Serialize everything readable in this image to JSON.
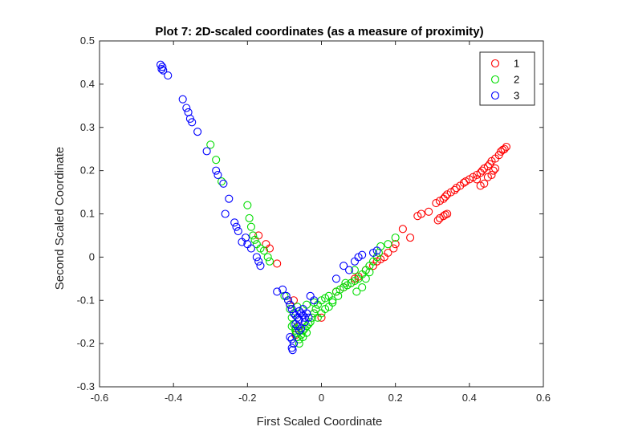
{
  "chart_data": {
    "type": "scatter",
    "title": "Plot 7: 2D-scaled coordinates (as a measure of proximity)",
    "xlabel": "First Scaled Coordinate",
    "ylabel": "Second Scaled Coordinate",
    "xlim": [
      -0.6,
      0.6
    ],
    "ylim": [
      -0.3,
      0.5
    ],
    "xticks": [
      "-0.6",
      "-0.4",
      "-0.2",
      "0",
      "0.2",
      "0.4",
      "0.6"
    ],
    "yticks": [
      "-0.3",
      "-0.2",
      "-0.1",
      "0",
      "0.1",
      "0.2",
      "0.3",
      "0.4",
      "0.5"
    ],
    "grid": false,
    "legend_position": "top-right",
    "marker": "open-circle",
    "series": [
      {
        "name": "1",
        "color": "#ff0000",
        "points": [
          [
            0.5,
            0.255
          ],
          [
            0.495,
            0.25
          ],
          [
            0.49,
            0.248
          ],
          [
            0.485,
            0.244
          ],
          [
            0.48,
            0.236
          ],
          [
            0.47,
            0.228
          ],
          [
            0.46,
            0.222
          ],
          [
            0.455,
            0.215
          ],
          [
            0.45,
            0.21
          ],
          [
            0.44,
            0.205
          ],
          [
            0.435,
            0.2
          ],
          [
            0.43,
            0.195
          ],
          [
            0.42,
            0.19
          ],
          [
            0.41,
            0.185
          ],
          [
            0.4,
            0.18
          ],
          [
            0.39,
            0.175
          ],
          [
            0.385,
            0.172
          ],
          [
            0.375,
            0.165
          ],
          [
            0.365,
            0.16
          ],
          [
            0.36,
            0.155
          ],
          [
            0.35,
            0.15
          ],
          [
            0.34,
            0.145
          ],
          [
            0.335,
            0.14
          ],
          [
            0.33,
            0.135
          ],
          [
            0.32,
            0.13
          ],
          [
            0.31,
            0.125
          ],
          [
            0.47,
            0.205
          ],
          [
            0.465,
            0.2
          ],
          [
            0.46,
            0.19
          ],
          [
            0.45,
            0.185
          ],
          [
            0.44,
            0.17
          ],
          [
            0.43,
            0.165
          ],
          [
            0.42,
            0.18
          ],
          [
            0.33,
            0.095
          ],
          [
            0.32,
            0.09
          ],
          [
            0.315,
            0.085
          ],
          [
            0.34,
            0.1
          ],
          [
            0.335,
            0.098
          ],
          [
            0.29,
            0.105
          ],
          [
            0.27,
            0.1
          ],
          [
            0.26,
            0.095
          ],
          [
            0.22,
            0.065
          ],
          [
            0.24,
            0.045
          ],
          [
            0.2,
            0.03
          ],
          [
            0.195,
            0.02
          ],
          [
            0.18,
            0.01
          ],
          [
            0.17,
            0.0
          ],
          [
            0.16,
            -0.005
          ],
          [
            0.15,
            -0.01
          ],
          [
            0.14,
            -0.02
          ],
          [
            0.12,
            -0.03
          ],
          [
            0.1,
            -0.045
          ],
          [
            0.09,
            -0.05
          ],
          [
            0.08,
            -0.06
          ],
          [
            0.06,
            -0.07
          ],
          [
            0.04,
            -0.08
          ],
          [
            0.0,
            -0.14
          ],
          [
            -0.02,
            -0.13
          ],
          [
            -0.06,
            -0.16
          ],
          [
            -0.07,
            -0.18
          ],
          [
            -0.075,
            -0.1
          ],
          [
            -0.085,
            -0.11
          ],
          [
            -0.12,
            -0.015
          ],
          [
            -0.14,
            0.02
          ],
          [
            -0.15,
            0.03
          ],
          [
            -0.17,
            0.05
          ]
        ]
      },
      {
        "name": "2",
        "color": "#00dd00",
        "points": [
          [
            -0.3,
            0.26
          ],
          [
            -0.285,
            0.225
          ],
          [
            -0.27,
            0.175
          ],
          [
            -0.2,
            0.12
          ],
          [
            -0.195,
            0.09
          ],
          [
            -0.19,
            0.07
          ],
          [
            -0.185,
            0.05
          ],
          [
            -0.18,
            0.04
          ],
          [
            -0.175,
            0.03
          ],
          [
            -0.165,
            0.02
          ],
          [
            -0.155,
            0.015
          ],
          [
            -0.145,
            0.0
          ],
          [
            -0.14,
            -0.01
          ],
          [
            -0.1,
            -0.09
          ],
          [
            -0.09,
            -0.1
          ],
          [
            -0.085,
            -0.12
          ],
          [
            -0.08,
            -0.14
          ],
          [
            -0.075,
            -0.155
          ],
          [
            -0.07,
            -0.165
          ],
          [
            -0.068,
            -0.175
          ],
          [
            -0.065,
            -0.185
          ],
          [
            -0.06,
            -0.19
          ],
          [
            -0.055,
            -0.18
          ],
          [
            -0.05,
            -0.17
          ],
          [
            -0.045,
            -0.165
          ],
          [
            -0.04,
            -0.16
          ],
          [
            -0.03,
            -0.15
          ],
          [
            -0.025,
            -0.14
          ],
          [
            -0.02,
            -0.13
          ],
          [
            -0.015,
            -0.12
          ],
          [
            -0.01,
            -0.11
          ],
          [
            0.0,
            -0.1
          ],
          [
            0.01,
            -0.095
          ],
          [
            0.02,
            -0.09
          ],
          [
            0.03,
            -0.1
          ],
          [
            0.04,
            -0.08
          ],
          [
            0.05,
            -0.075
          ],
          [
            0.06,
            -0.07
          ],
          [
            0.07,
            -0.065
          ],
          [
            0.08,
            -0.06
          ],
          [
            0.09,
            -0.055
          ],
          [
            0.1,
            -0.05
          ],
          [
            0.11,
            -0.04
          ],
          [
            0.12,
            -0.03
          ],
          [
            0.13,
            -0.02
          ],
          [
            0.14,
            -0.01
          ],
          [
            0.15,
            0.0
          ],
          [
            0.155,
            0.01
          ],
          [
            0.16,
            0.025
          ],
          [
            0.18,
            0.03
          ],
          [
            0.2,
            0.045
          ],
          [
            0.01,
            -0.12
          ],
          [
            0.02,
            -0.115
          ],
          [
            0.03,
            -0.105
          ],
          [
            0.0,
            -0.13
          ],
          [
            -0.01,
            -0.14
          ],
          [
            -0.04,
            -0.175
          ],
          [
            -0.05,
            -0.185
          ],
          [
            -0.06,
            -0.2
          ],
          [
            -0.07,
            -0.17
          ],
          [
            -0.08,
            -0.16
          ],
          [
            -0.075,
            -0.13
          ],
          [
            -0.035,
            -0.155
          ],
          [
            0.045,
            -0.09
          ],
          [
            0.065,
            -0.06
          ],
          [
            0.095,
            -0.08
          ],
          [
            0.11,
            -0.07
          ],
          [
            0.13,
            -0.035
          ],
          [
            0.12,
            -0.05
          ],
          [
            -0.065,
            -0.115
          ],
          [
            -0.075,
            -0.2
          ],
          [
            -0.02,
            -0.105
          ],
          [
            -0.04,
            -0.11
          ],
          [
            0.09,
            -0.03
          ]
        ]
      },
      {
        "name": "3",
        "color": "#0000ff",
        "points": [
          [
            -0.435,
            0.445
          ],
          [
            -0.43,
            0.44
          ],
          [
            -0.432,
            0.435
          ],
          [
            -0.428,
            0.432
          ],
          [
            -0.415,
            0.42
          ],
          [
            -0.375,
            0.365
          ],
          [
            -0.365,
            0.345
          ],
          [
            -0.36,
            0.335
          ],
          [
            -0.355,
            0.32
          ],
          [
            -0.35,
            0.312
          ],
          [
            -0.335,
            0.29
          ],
          [
            -0.31,
            0.245
          ],
          [
            -0.285,
            0.2
          ],
          [
            -0.28,
            0.19
          ],
          [
            -0.265,
            0.17
          ],
          [
            -0.25,
            0.135
          ],
          [
            -0.235,
            0.08
          ],
          [
            -0.23,
            0.07
          ],
          [
            -0.225,
            0.06
          ],
          [
            -0.215,
            0.035
          ],
          [
            -0.205,
            0.045
          ],
          [
            -0.2,
            0.03
          ],
          [
            -0.19,
            0.02
          ],
          [
            -0.175,
            0.0
          ],
          [
            -0.17,
            -0.01
          ],
          [
            -0.165,
            -0.02
          ],
          [
            -0.26,
            0.1
          ],
          [
            -0.12,
            -0.08
          ],
          [
            -0.105,
            -0.075
          ],
          [
            -0.095,
            -0.09
          ],
          [
            -0.09,
            -0.1
          ],
          [
            -0.085,
            -0.11
          ],
          [
            -0.08,
            -0.12
          ],
          [
            -0.075,
            -0.13
          ],
          [
            -0.07,
            -0.135
          ],
          [
            -0.065,
            -0.14
          ],
          [
            -0.06,
            -0.145
          ],
          [
            -0.055,
            -0.13
          ],
          [
            -0.05,
            -0.135
          ],
          [
            -0.045,
            -0.14
          ],
          [
            -0.07,
            -0.155
          ],
          [
            -0.065,
            -0.16
          ],
          [
            -0.06,
            -0.17
          ],
          [
            -0.055,
            -0.165
          ],
          [
            -0.08,
            -0.19
          ],
          [
            -0.075,
            -0.2
          ],
          [
            -0.08,
            -0.21
          ],
          [
            -0.078,
            -0.215
          ],
          [
            -0.085,
            -0.185
          ],
          [
            -0.03,
            -0.09
          ],
          [
            -0.02,
            -0.1
          ],
          [
            0.04,
            -0.05
          ],
          [
            0.06,
            -0.02
          ],
          [
            0.075,
            -0.03
          ],
          [
            0.09,
            -0.01
          ],
          [
            0.1,
            0.0
          ],
          [
            0.11,
            0.005
          ],
          [
            0.14,
            0.01
          ],
          [
            0.15,
            0.015
          ],
          [
            -0.05,
            -0.12
          ],
          [
            -0.04,
            -0.13
          ],
          [
            -0.06,
            -0.125
          ],
          [
            -0.045,
            -0.15
          ],
          [
            -0.035,
            -0.14
          ]
        ]
      }
    ]
  }
}
